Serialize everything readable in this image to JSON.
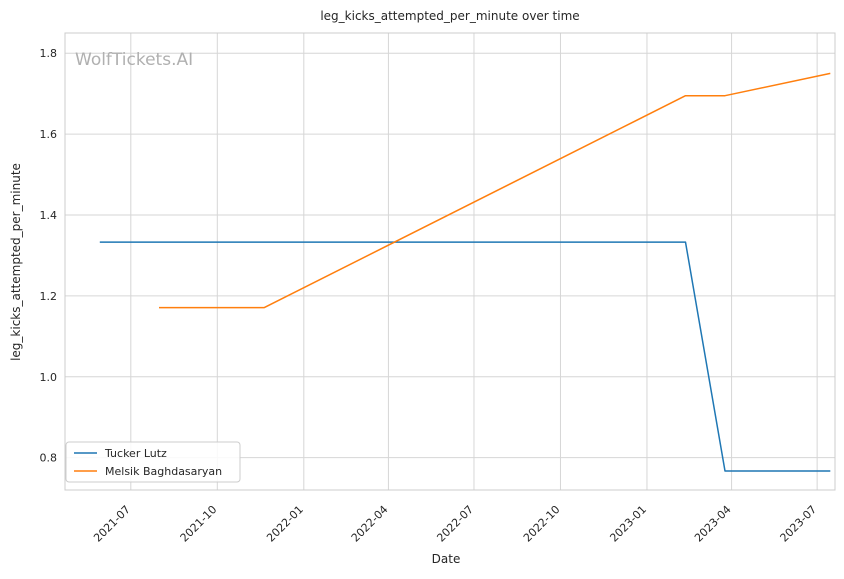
{
  "chart_data": {
    "type": "line",
    "title": "leg_kicks_attempted_per_minute over time",
    "xlabel": "Date",
    "ylabel": "leg_kicks_attempted_per_minute",
    "watermark": "WolfTickets.AI",
    "x_range": [
      "2021-04-22",
      "2023-07-20"
    ],
    "y_range": [
      0.72,
      1.85
    ],
    "x_ticks": [
      {
        "date": "2021-07-01",
        "label": "2021-07"
      },
      {
        "date": "2021-10-01",
        "label": "2021-10"
      },
      {
        "date": "2022-01-01",
        "label": "2022-01"
      },
      {
        "date": "2022-04-01",
        "label": "2022-04"
      },
      {
        "date": "2022-07-01",
        "label": "2022-07"
      },
      {
        "date": "2022-10-01",
        "label": "2022-10"
      },
      {
        "date": "2023-01-01",
        "label": "2023-01"
      },
      {
        "date": "2023-04-01",
        "label": "2023-04"
      },
      {
        "date": "2023-07-01",
        "label": "2023-07"
      }
    ],
    "y_ticks": [
      0.8,
      1.0,
      1.2,
      1.4,
      1.6,
      1.8
    ],
    "y_tick_labels": [
      "0.8",
      "1.0",
      "1.2",
      "1.4",
      "1.6",
      "1.8"
    ],
    "grid": true,
    "legend_position": "lower-left",
    "series": [
      {
        "name": "Tucker Lutz",
        "color": "#1f77b4",
        "points": [
          {
            "x": "2021-05-29",
            "y": 1.333
          },
          {
            "x": "2023-02-11",
            "y": 1.333
          },
          {
            "x": "2023-03-25",
            "y": 0.767
          },
          {
            "x": "2023-07-15",
            "y": 0.767
          }
        ]
      },
      {
        "name": "Melsik Baghdasaryan",
        "color": "#ff7f0e",
        "points": [
          {
            "x": "2021-07-31",
            "y": 1.171
          },
          {
            "x": "2021-11-20",
            "y": 1.171
          },
          {
            "x": "2023-02-11",
            "y": 1.695
          },
          {
            "x": "2023-03-25",
            "y": 1.695
          },
          {
            "x": "2023-07-15",
            "y": 1.75
          }
        ]
      }
    ]
  }
}
